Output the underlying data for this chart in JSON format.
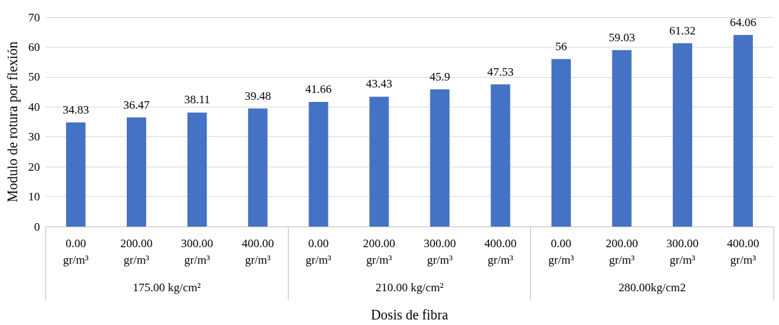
{
  "chart_data": {
    "type": "bar",
    "xlabel": "Dosis de fibra",
    "ylabel": "Modulo de rotura por flexión",
    "categories": [
      "0.00 gr/m³",
      "200.00 gr/m³",
      "300.00 gr/m³",
      "400.00 gr/m³",
      "0.00 gr/m³",
      "200.00 gr/m³",
      "300.00 gr/m³",
      "400.00 gr/m³",
      "0.00 gr/m³",
      "200.00 gr/m³",
      "300.00 gr/m³",
      "400.00 gr/m³"
    ],
    "values": [
      34.83,
      36.47,
      38.11,
      39.48,
      41.66,
      43.43,
      45.9,
      47.53,
      56,
      59.03,
      61.32,
      64.06
    ],
    "color": "#4472c4",
    "annotations": [
      "175.00 kg/cm²",
      "210.00 kg/cm²",
      "280.00kg/cm2"
    ],
    "ylim": [
      0,
      70
    ],
    "yticks": [
      0,
      10,
      20,
      30,
      40,
      50,
      60,
      70
    ],
    "grid": "y",
    "data_labels": true
  }
}
